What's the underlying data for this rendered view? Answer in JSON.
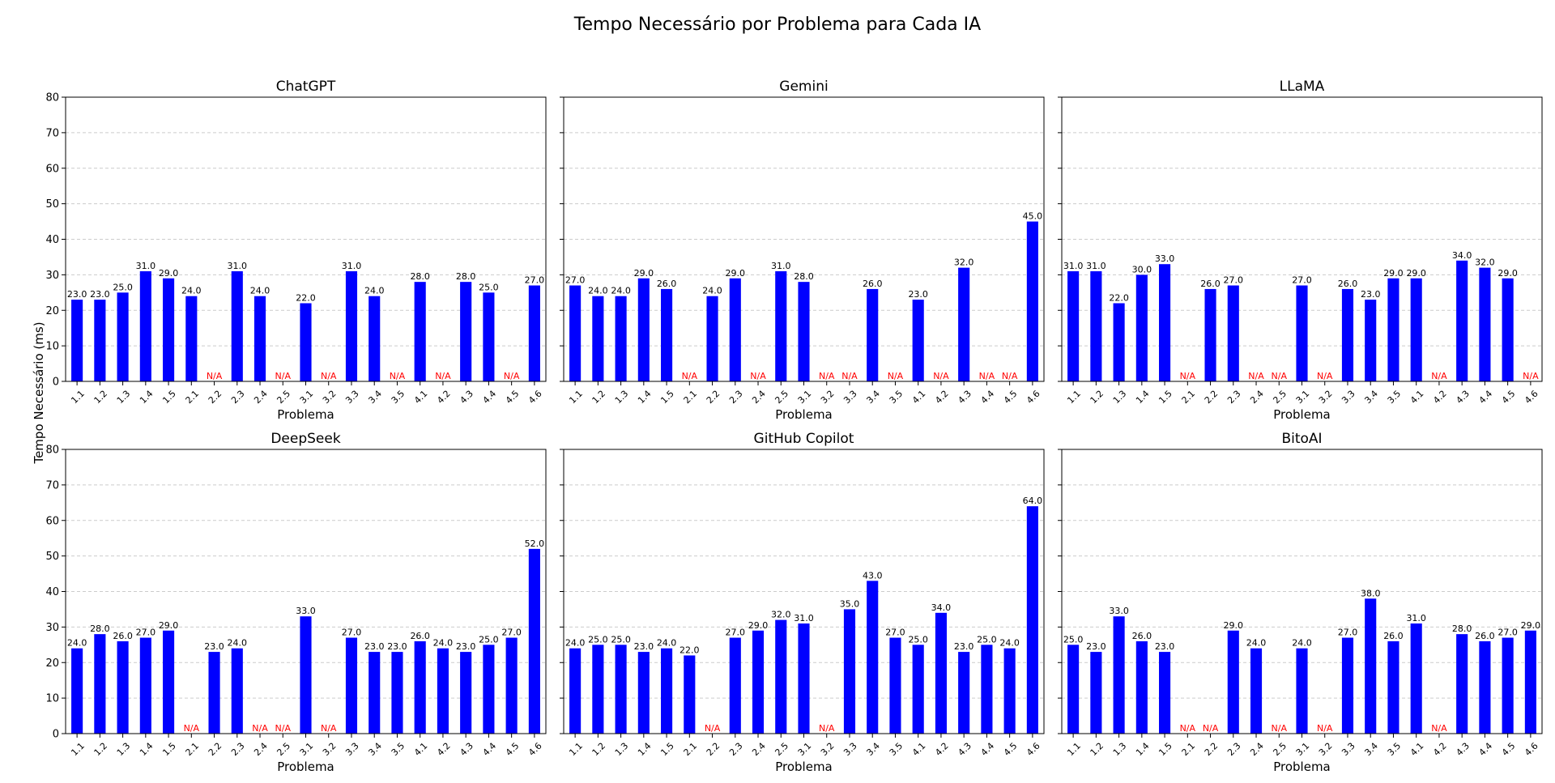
{
  "suptitle": "Tempo Necessário por Problema para Cada IA",
  "colors": {
    "bar": "#0000ff",
    "highlight": "#ff0000",
    "na_text": "#ff0000",
    "grid": "#cccccc"
  },
  "chart_data": {
    "type": "bar",
    "ylabel": "Tempo Necessário (ms)",
    "xlabel": "Problema",
    "ylim": [
      0,
      80
    ],
    "yticks": [
      0,
      10,
      20,
      30,
      40,
      50,
      60,
      70,
      80
    ],
    "grid": "y-dashed",
    "categories": [
      "1.1",
      "1.2",
      "1.3",
      "1.4",
      "1.5",
      "2.1",
      "2.2",
      "2.3",
      "2.4",
      "2.5",
      "3.1",
      "3.2",
      "3.3",
      "3.4",
      "3.5",
      "4.1",
      "4.2",
      "4.3",
      "4.4",
      "4.5",
      "4.6"
    ],
    "na_label": "N/A",
    "panels": [
      {
        "title": "ChatGPT",
        "values": [
          23,
          23,
          25,
          31,
          29,
          24,
          null,
          31,
          24,
          null,
          22,
          null,
          31,
          24,
          null,
          28,
          null,
          28,
          25,
          null,
          27
        ]
      },
      {
        "title": "Gemini",
        "values": [
          27,
          24,
          24,
          29,
          26,
          null,
          24,
          29,
          null,
          31,
          28,
          null,
          null,
          26,
          null,
          23,
          null,
          32,
          null,
          null,
          45
        ],
        "highlight_index": 11
      },
      {
        "title": "LLaMA",
        "values": [
          31,
          31,
          22,
          30,
          33,
          null,
          26,
          27,
          null,
          null,
          27,
          null,
          26,
          23,
          29,
          29,
          null,
          34,
          32,
          29,
          null
        ]
      },
      {
        "title": "DeepSeek",
        "values": [
          24,
          28,
          26,
          27,
          29,
          null,
          23,
          24,
          null,
          null,
          33,
          null,
          27,
          23,
          23,
          26,
          24,
          23,
          25,
          27,
          52
        ]
      },
      {
        "title": "GitHub Copilot",
        "values": [
          24,
          25,
          25,
          23,
          24,
          22,
          null,
          27,
          29,
          32,
          31,
          null,
          35,
          43,
          27,
          25,
          34,
          23,
          25,
          24,
          64
        ]
      },
      {
        "title": "BitoAI",
        "values": [
          25,
          23,
          33,
          26,
          23,
          null,
          null,
          29,
          24,
          null,
          24,
          null,
          27,
          38,
          26,
          31,
          null,
          28,
          26,
          27,
          29
        ]
      }
    ]
  }
}
